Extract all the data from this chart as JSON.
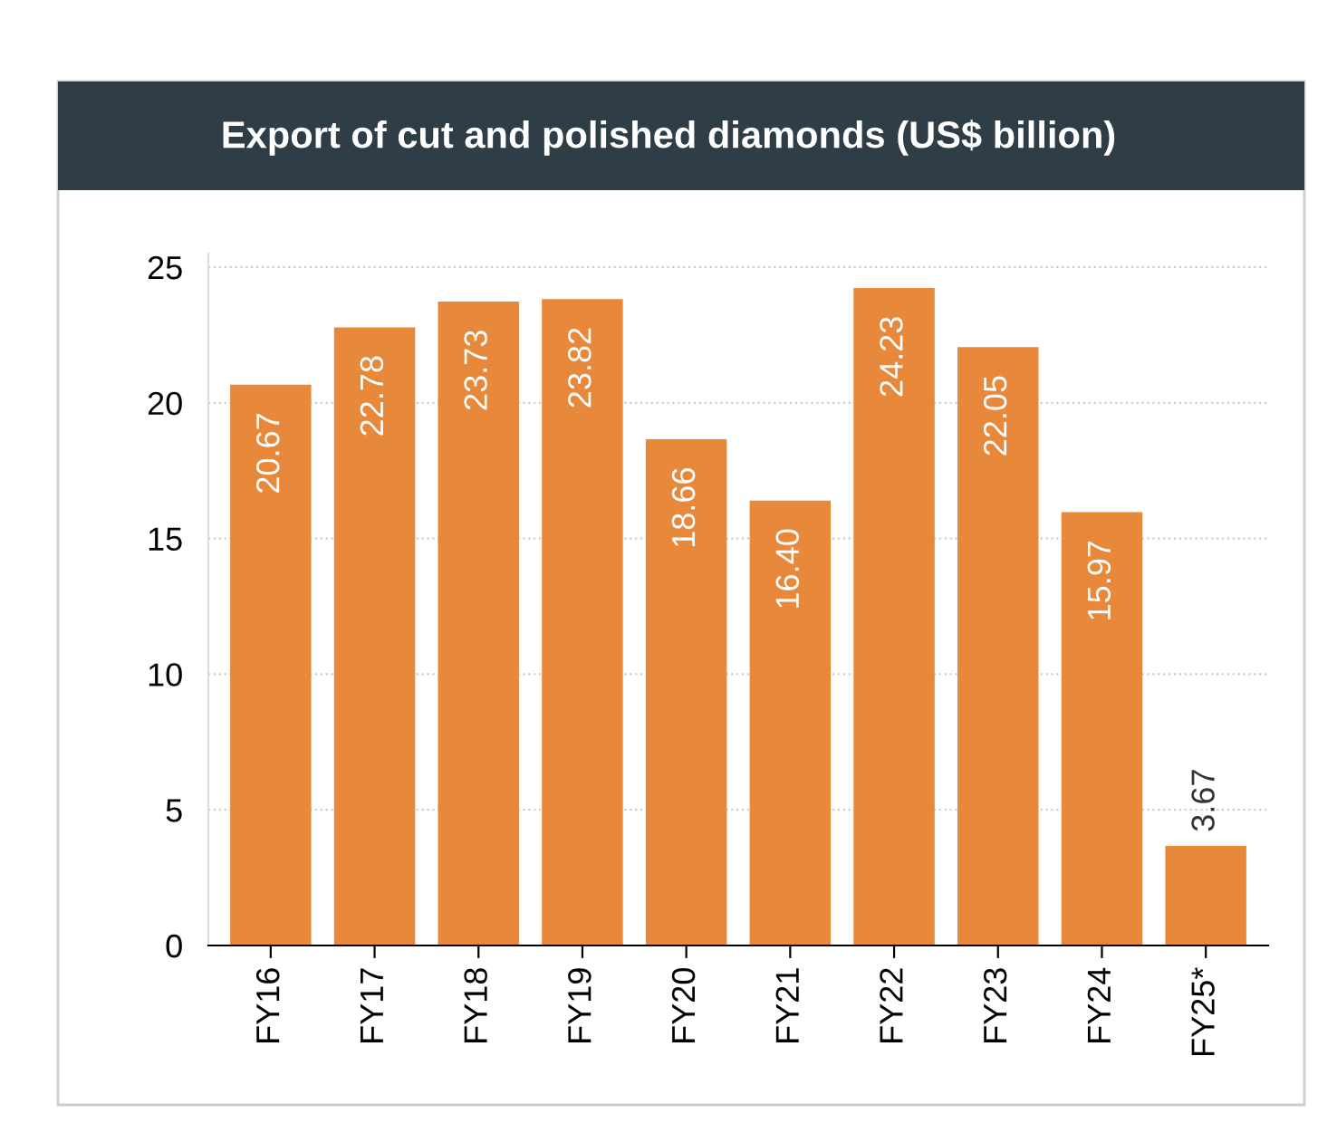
{
  "chart_data": {
    "type": "bar",
    "title": "Export of cut and polished diamonds (US$ billion)",
    "categories": [
      "FY16",
      "FY17",
      "FY18",
      "FY19",
      "FY20",
      "FY21",
      "FY22",
      "FY23",
      "FY24",
      "FY25*"
    ],
    "values": [
      20.67,
      22.78,
      23.73,
      23.82,
      18.66,
      16.4,
      24.23,
      22.05,
      15.97,
      3.67
    ],
    "value_labels": [
      "20.67",
      "22.78",
      "23.73",
      "23.82",
      "18.66",
      "16.40",
      "24.23",
      "22.05",
      "15.97",
      "3.67"
    ],
    "color": "#e8883a",
    "ylim": [
      0,
      25.5
    ],
    "yticks": [
      0,
      5,
      10,
      15,
      20,
      25
    ],
    "grid": "y"
  }
}
